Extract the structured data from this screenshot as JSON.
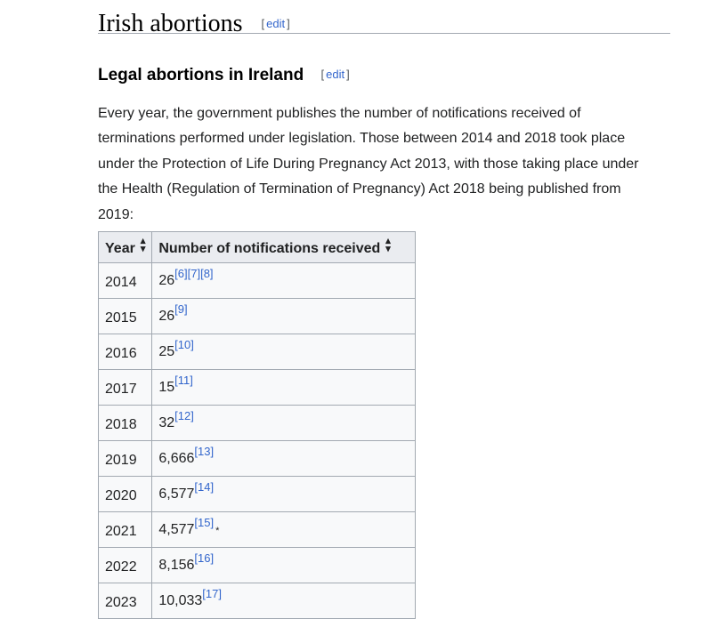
{
  "section": {
    "title": "Irish abortions",
    "edit": "edit"
  },
  "subsection": {
    "title": "Legal abortions in Ireland",
    "edit": "edit"
  },
  "intro": "Every year, the government publishes the number of notifications received of terminations performed under legislation. Those between 2014 and 2018 took place under the Protection of Life During Pregnancy Act 2013, with those taking place under the Health (Regulation of Termination of Pregnancy) Act 2018 being published from 2019:",
  "table": {
    "headers": [
      "Year",
      "Number of notifications received"
    ],
    "rows": [
      {
        "year": "2014",
        "value": "26",
        "refs": [
          "[6]",
          "[7]",
          "[8]"
        ]
      },
      {
        "year": "2015",
        "value": "26",
        "refs": [
          "[9]"
        ]
      },
      {
        "year": "2016",
        "value": "25",
        "refs": [
          "[10]"
        ]
      },
      {
        "year": "2017",
        "value": "15",
        "refs": [
          "[11]"
        ]
      },
      {
        "year": "2018",
        "value": "32",
        "refs": [
          "[12]"
        ]
      },
      {
        "year": "2019",
        "value": "6,666",
        "refs": [
          "[13]"
        ]
      },
      {
        "year": "2020",
        "value": "6,577",
        "refs": [
          "[14]"
        ]
      },
      {
        "year": "2021",
        "value": "4,577",
        "refs": [
          "[15]"
        ],
        "mark": "*"
      },
      {
        "year": "2022",
        "value": "8,156",
        "refs": [
          "[16]"
        ]
      },
      {
        "year": "2023",
        "value": "10,033",
        "refs": [
          "[17]"
        ]
      }
    ]
  },
  "icons": {
    "sort": "sort-icon"
  },
  "colors": {
    "link": "#3366cc",
    "header_bg": "#eaecf0",
    "table_bg": "#f8f9fa",
    "border": "#a2a9b1"
  }
}
